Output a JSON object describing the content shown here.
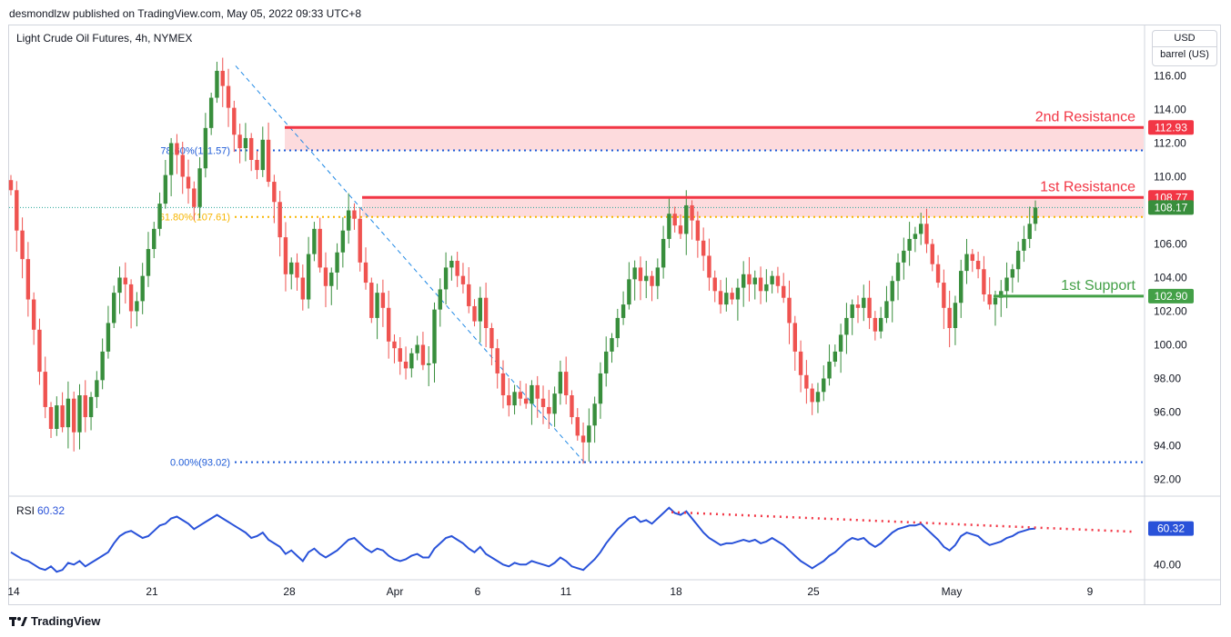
{
  "header": {
    "publisher": "desmondlzw published on TradingView.com, May 05, 2022 09:33 UTC+8"
  },
  "symbol_title": "Light Crude Oil Futures, 4h, NYMEX",
  "currency_label": "USD",
  "unit_label": "barrel (US)",
  "footer_brand": "TradingView",
  "colors": {
    "up": "#26a69a",
    "candle_up": "#388e3c",
    "candle_down": "#ef5350",
    "resistance": "#f23645",
    "support": "#43a047",
    "fib_blue": "#2962ff",
    "fib_yellow": "#f7b500",
    "rsi_line": "#2952d9"
  },
  "chart_data": [
    {
      "type": "candlestick",
      "title": "Light Crude Oil Futures, 4h, NYMEX",
      "y_axis_ticks": [
        "116.00",
        "114.00",
        "112.00",
        "110.00",
        "108.00",
        "106.00",
        "104.00",
        "102.00",
        "100.00",
        "98.00",
        "96.00",
        "94.00",
        "92.00"
      ],
      "x_axis_ticks": [
        "14",
        "21",
        "28",
        "Apr",
        "6",
        "11",
        "18",
        "25",
        "May",
        "9"
      ],
      "ylim": [
        91,
        119
      ],
      "levels": [
        {
          "label": "2nd Resistance",
          "price_tag": "112.93",
          "value": 112.93
        },
        {
          "label": "1st Resistance",
          "price_tag": "108.77",
          "value": 108.77
        },
        {
          "label": "1st Support",
          "price_tag": "102.90",
          "value": 102.9
        }
      ],
      "resistance_zones": [
        [
          111.57,
          112.93
        ],
        [
          107.61,
          108.77
        ]
      ],
      "last_price_tag": "108.17",
      "last_price": 108.17,
      "fibonacci": [
        {
          "label": "78.60%(111.57)",
          "value": 111.57
        },
        {
          "label": "61.80%(107.61)",
          "value": 107.61
        },
        {
          "label": "0.00%(93.02)",
          "value": 93.02
        }
      ],
      "trendline": {
        "from": 116.6,
        "to": 93.02
      },
      "closes": [
        109.2,
        106.8,
        105.1,
        102.7,
        100.9,
        98.4,
        96.3,
        95.0,
        96.4,
        95.1,
        96.8,
        94.8,
        97.0,
        95.7,
        96.9,
        97.9,
        99.6,
        101.3,
        103.1,
        104.0,
        103.6,
        102.0,
        102.6,
        104.1,
        105.7,
        106.9,
        108.4,
        110.1,
        112.0,
        111.3,
        110.0,
        109.3,
        108.2,
        110.5,
        112.9,
        114.7,
        116.3,
        115.4,
        114.1,
        112.5,
        111.7,
        112.3,
        111.0,
        110.4,
        112.2,
        109.7,
        108.5,
        106.4,
        104.2,
        104.9,
        104.0,
        102.7,
        105.4,
        106.9,
        104.6,
        103.5,
        104.3,
        105.5,
        106.8,
        108.0,
        107.5,
        104.9,
        103.7,
        101.6,
        103.1,
        102.2,
        100.2,
        99.8,
        99.0,
        98.6,
        99.5,
        100.0,
        98.8,
        98.9,
        102.1,
        103.3,
        104.6,
        105.0,
        104.1,
        103.6,
        102.3,
        101.4,
        102.8,
        101.0,
        99.8,
        98.3,
        97.0,
        96.4,
        97.2,
        96.8,
        96.5,
        97.6,
        96.8,
        96.3,
        95.9,
        97.1,
        98.4,
        97.0,
        95.7,
        94.6,
        94.2,
        95.2,
        96.5,
        98.3,
        99.6,
        100.4,
        101.6,
        102.4,
        103.9,
        104.6,
        103.8,
        104.1,
        103.5,
        104.6,
        106.3,
        107.8,
        107.1,
        106.6,
        108.3,
        107.4,
        106.2,
        105.3,
        104.0,
        103.2,
        102.4,
        103.1,
        102.7,
        103.4,
        104.2,
        103.6,
        104.0,
        103.2,
        103.6,
        104.1,
        103.5,
        102.8,
        101.3,
        99.6,
        98.2,
        97.4,
        96.6,
        97.2,
        98.0,
        99.0,
        99.6,
        100.6,
        101.6,
        102.4,
        102.2,
        102.8,
        101.6,
        100.8,
        101.6,
        102.6,
        103.8,
        104.9,
        105.6,
        106.3,
        106.6,
        107.2,
        106.0,
        104.8,
        103.7,
        102.2,
        101.0,
        102.5,
        104.4,
        105.4,
        105.0,
        104.5,
        103.0,
        102.4,
        102.8,
        103.2,
        104.0,
        104.5,
        105.6,
        106.3,
        107.2,
        108.17
      ],
      "rsi": {
        "label": "RSI",
        "value_label": "60.32",
        "last": 60.32,
        "tick": "40.00",
        "ylim": [
          32,
          78
        ],
        "trendline": {
          "from": 69.5,
          "to": 58.5
        },
        "values": [
          47,
          45,
          43,
          42,
          40,
          38,
          37,
          39,
          36,
          37,
          41,
          40,
          42,
          39,
          41,
          43,
          45,
          47,
          52,
          56,
          58,
          59,
          57,
          55,
          56,
          59,
          62,
          63,
          66,
          67,
          65,
          63,
          60,
          62,
          64,
          66,
          68,
          66,
          64,
          62,
          60,
          58,
          55,
          56,
          58,
          54,
          52,
          50,
          46,
          48,
          45,
          42,
          47,
          49,
          46,
          44,
          46,
          48,
          51,
          54,
          55,
          52,
          49,
          47,
          49,
          48,
          45,
          43,
          42,
          43,
          45,
          46,
          44,
          44,
          49,
          52,
          55,
          56,
          54,
          52,
          49,
          47,
          50,
          46,
          44,
          42,
          40,
          39,
          41,
          40,
          40,
          42,
          41,
          40,
          39,
          41,
          44,
          42,
          39,
          38,
          37,
          40,
          43,
          47,
          52,
          56,
          60,
          63,
          66,
          67,
          64,
          65,
          63,
          66,
          69,
          72,
          69,
          68,
          70,
          66,
          62,
          58,
          55,
          53,
          51,
          52,
          52,
          53,
          54,
          53,
          54,
          52,
          53,
          55,
          53,
          51,
          48,
          45,
          42,
          40,
          38,
          40,
          42,
          45,
          47,
          50,
          53,
          55,
          54,
          55,
          52,
          50,
          52,
          55,
          58,
          60,
          61,
          62,
          62,
          63,
          60,
          57,
          54,
          50,
          48,
          51,
          56,
          58,
          57,
          56,
          53,
          51,
          52,
          53,
          55,
          56,
          58,
          59,
          60,
          60.32
        ]
      }
    }
  ]
}
